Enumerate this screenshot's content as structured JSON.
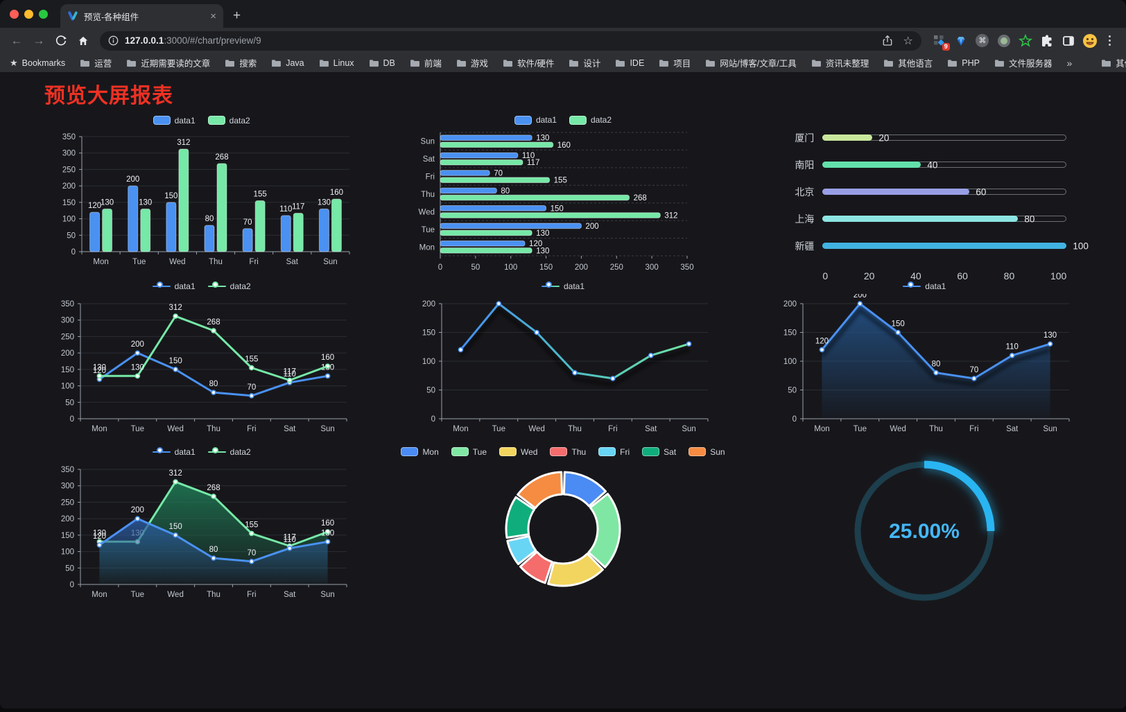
{
  "browser": {
    "tab_title": "预览-各种组件",
    "tab_close": "×",
    "new_tab": "+",
    "url_host": "127.0.0.1",
    "url_rest": ":3000/#/chart/preview/9",
    "extensions_badge": "9",
    "bookmarks_label": "Bookmarks",
    "bookmark_folders": [
      "运营",
      "近期需要读的文章",
      "搜索",
      "Java",
      "Linux",
      "DB",
      "前端",
      "游戏",
      "软件/硬件",
      "设计",
      "IDE",
      "项目",
      "网站/博客/文章/工具",
      "资讯未整理",
      "其他语言",
      "PHP",
      "文件服务器"
    ],
    "overflow_chevron": "»",
    "other_bookmarks": "其他书签",
    "icons": {
      "back": "←",
      "forward": "→",
      "star": "☆",
      "cmd": "⌘"
    }
  },
  "page": {
    "title": "预览大屏报表",
    "title_color": "#ee3123"
  },
  "colors": {
    "blue": "#4a91f2",
    "green": "#76e8a7",
    "axis": "#9aa0aa",
    "grid": "#2b2d33",
    "tick_text": "#c3c7d0",
    "data_label": "#f0f2f5"
  },
  "chart_data": [
    {
      "id": "bar-vertical",
      "type": "bar",
      "categories": [
        "Mon",
        "Tue",
        "Wed",
        "Thu",
        "Fri",
        "Sat",
        "Sun"
      ],
      "series": [
        {
          "name": "data1",
          "color": "#4a91f2",
          "values": [
            120,
            200,
            150,
            80,
            70,
            110,
            130
          ]
        },
        {
          "name": "data2",
          "color": "#76e8a7",
          "values": [
            130,
            130,
            312,
            268,
            155,
            117,
            160
          ]
        }
      ],
      "ylim": [
        0,
        350
      ],
      "ystep": 50,
      "grid": true,
      "legend_position": "top"
    },
    {
      "id": "bar-horizontal",
      "type": "bar-horizontal",
      "categories": [
        "Mon",
        "Tue",
        "Wed",
        "Thu",
        "Fri",
        "Sat",
        "Sun"
      ],
      "display_order": "reversed",
      "series": [
        {
          "name": "data1",
          "color": "#4a91f2",
          "values": [
            120,
            200,
            150,
            80,
            70,
            110,
            130
          ]
        },
        {
          "name": "data2",
          "color": "#76e8a7",
          "values": [
            130,
            130,
            312,
            268,
            155,
            117,
            160
          ]
        }
      ],
      "xlim": [
        0,
        350
      ],
      "xstep": 50,
      "legend_position": "top"
    },
    {
      "id": "progress-bars",
      "type": "bar-progress",
      "max": 100,
      "items": [
        {
          "label": "厦门",
          "value": 20,
          "color": "#c9e89c"
        },
        {
          "label": "南阳",
          "value": 40,
          "color": "#62e0ab"
        },
        {
          "label": "北京",
          "value": 60,
          "color": "#989fe5"
        },
        {
          "label": "上海",
          "value": 80,
          "color": "#8ce5e2"
        },
        {
          "label": "新疆",
          "value": 100,
          "color": "#41b2e2"
        }
      ],
      "axis_ticks": [
        0,
        20,
        40,
        60,
        80,
        100
      ]
    },
    {
      "id": "line-multi",
      "type": "line",
      "categories": [
        "Mon",
        "Tue",
        "Wed",
        "Thu",
        "Fri",
        "Sat",
        "Sun"
      ],
      "series": [
        {
          "name": "data1",
          "color": "#4a91f2",
          "values": [
            120,
            200,
            150,
            80,
            70,
            110,
            130
          ]
        },
        {
          "name": "data2",
          "color": "#76e8a7",
          "values": [
            130,
            130,
            312,
            268,
            155,
            117,
            160
          ]
        }
      ],
      "ylim": [
        0,
        350
      ],
      "ystep": 50,
      "labels": true,
      "legend_position": "top"
    },
    {
      "id": "line-gradient",
      "type": "line",
      "categories": [
        "Mon",
        "Tue",
        "Wed",
        "Thu",
        "Fri",
        "Sat",
        "Sun"
      ],
      "series": [
        {
          "name": "data1",
          "color": "#4a91f2",
          "values": [
            120,
            200,
            150,
            80,
            70,
            110,
            130
          ]
        }
      ],
      "gradient": [
        "#458ef2",
        "#4fbfc4",
        "#6fe3a3"
      ],
      "ylim": [
        0,
        200
      ],
      "ystep": 50,
      "labels": false,
      "shadow": true,
      "legend_position": "top"
    },
    {
      "id": "area-single",
      "type": "line",
      "categories": [
        "Mon",
        "Tue",
        "Wed",
        "Thu",
        "Fri",
        "Sat",
        "Sun"
      ],
      "series": [
        {
          "name": "data1",
          "color": "#4a91f2",
          "values": [
            120,
            200,
            150,
            80,
            70,
            110,
            130
          ],
          "area": "#24568f"
        }
      ],
      "ylim": [
        0,
        200
      ],
      "ystep": 50,
      "labels": true,
      "shadow": true,
      "legend_position": "top"
    },
    {
      "id": "area-multi",
      "type": "line",
      "categories": [
        "Mon",
        "Tue",
        "Wed",
        "Thu",
        "Fri",
        "Sat",
        "Sun"
      ],
      "series": [
        {
          "name": "data2",
          "color": "#76e8a7",
          "values": [
            130,
            130,
            312,
            268,
            155,
            117,
            160
          ],
          "area": "#1f7d57"
        },
        {
          "name": "data1",
          "color": "#4a91f2",
          "values": [
            120,
            200,
            150,
            80,
            70,
            110,
            130
          ],
          "area": "#2a5a9e"
        }
      ],
      "legend_order": [
        "data1",
        "data2"
      ],
      "ylim": [
        0,
        350
      ],
      "ystep": 50,
      "labels": true,
      "legend_position": "top"
    },
    {
      "id": "donut",
      "type": "pie",
      "categories": [
        "Mon",
        "Tue",
        "Wed",
        "Thu",
        "Fri",
        "Sat",
        "Sun"
      ],
      "values": [
        120,
        200,
        150,
        80,
        70,
        110,
        130
      ],
      "colors": [
        "#4a8bf4",
        "#7fe7a3",
        "#f2d55e",
        "#f56c6c",
        "#68d5f5",
        "#10ad7c",
        "#f58c42"
      ],
      "inner_radius": 50,
      "outer_radius": 82,
      "border_color": "#ffffff",
      "legend_position": "top"
    },
    {
      "id": "gauge",
      "type": "gauge",
      "value": 25,
      "label": "25.00%",
      "color": "#29b5f2",
      "track_color": "#1d3e4c",
      "text_color": "#45b7f6"
    }
  ]
}
